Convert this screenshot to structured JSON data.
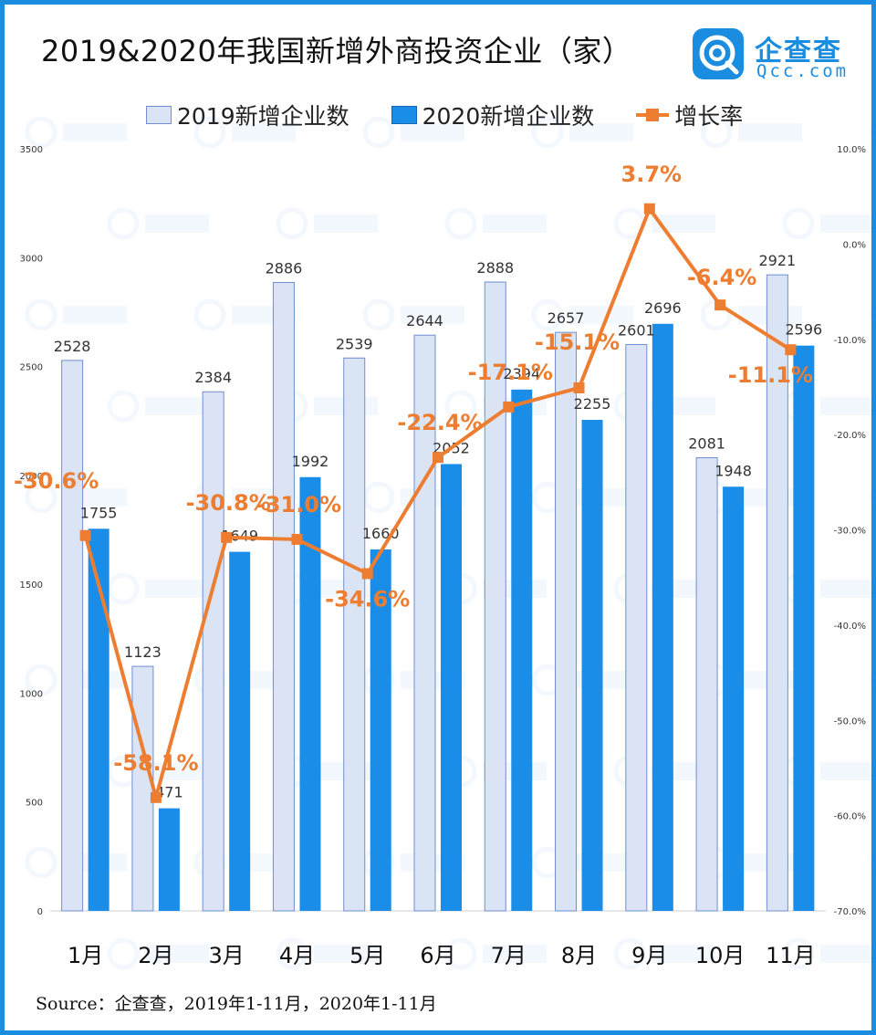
{
  "brand": {
    "name": "企查查",
    "site": "Qcc.com",
    "colors": {
      "border": "#1a8de0",
      "bar2019": "#dae4f4",
      "bar2019_edge": "#6f8fd0",
      "bar2020": "#1a8de8",
      "line": "#ed7d31"
    }
  },
  "source": "Source：企查查，2019年1-11月，2020年1-11月",
  "chart_data": {
    "type": "bar",
    "title": "2019&2020年我国新增外商投资企业（家）",
    "categories": [
      "1月",
      "2月",
      "3月",
      "4月",
      "5月",
      "6月",
      "7月",
      "8月",
      "9月",
      "10月",
      "11月"
    ],
    "series": [
      {
        "name": "2019新增企业数",
        "values": [
          2528,
          1123,
          2384,
          2886,
          2539,
          2644,
          2888,
          2657,
          2601,
          2081,
          2921
        ]
      },
      {
        "name": "2020新增企业数",
        "values": [
          1755,
          471,
          1649,
          1992,
          1660,
          2052,
          2394,
          2255,
          2696,
          1948,
          2596
        ]
      },
      {
        "name": "增长率",
        "type": "line",
        "axis": "right",
        "values": [
          -30.6,
          -58.1,
          -30.8,
          -31.0,
          -34.6,
          -22.4,
          -17.1,
          -15.1,
          3.7,
          -6.4,
          -11.1
        ]
      }
    ],
    "rate_labels": [
      "-30.6%",
      "-58.1%",
      "-30.8%",
      "-31.0%",
      "-34.6%",
      "-22.4%",
      "-17.1%",
      "-15.1%",
      "3.7%",
      "-6.4%",
      "-11.1%"
    ],
    "ylim": [
      0,
      3500
    ],
    "y_ticks": [
      0,
      500,
      1000,
      1500,
      2000,
      2500,
      3000,
      3500
    ],
    "y_tick_labels": [
      "0",
      "500",
      "1000",
      "1500",
      "2000",
      "2500",
      "3000",
      "3500"
    ],
    "y2lim": [
      -70,
      10
    ],
    "y2_ticks": [
      -70,
      -60,
      -50,
      -40,
      -30,
      -20,
      -10,
      0,
      10
    ],
    "y2_tick_labels": [
      "-70.0%",
      "-60.0%",
      "-50.0%",
      "-40.0%",
      "-30.0%",
      "-20.0%",
      "-10.0%",
      "0.0%",
      "10.0%"
    ],
    "legend": "top",
    "grid": false
  }
}
